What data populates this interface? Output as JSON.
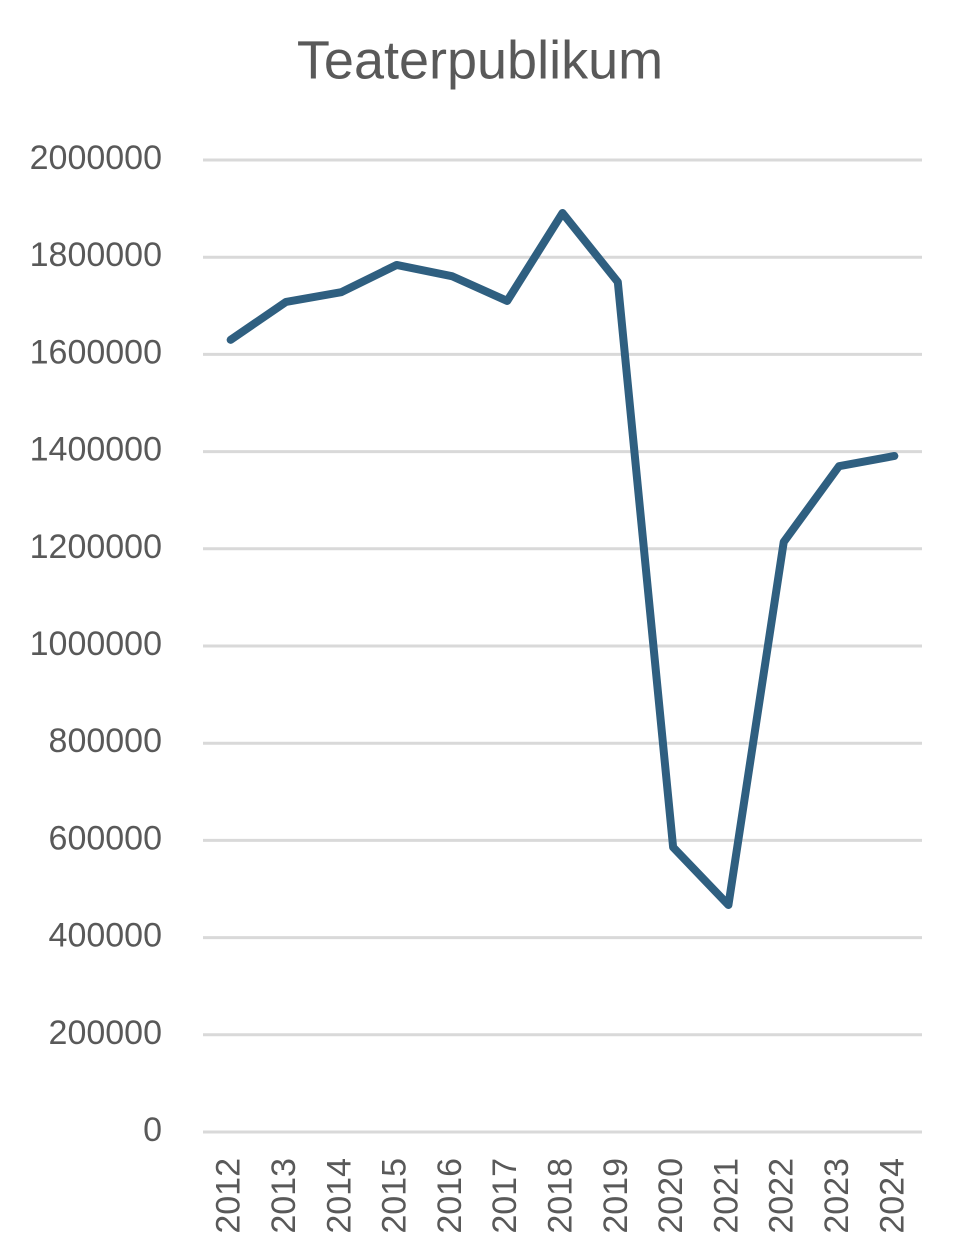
{
  "chart_data": {
    "type": "line",
    "title": "Teaterpublikum",
    "categories": [
      "2012",
      "2013",
      "2014",
      "2015",
      "2016",
      "2017",
      "2018",
      "2019",
      "2020",
      "2021",
      "2022",
      "2023",
      "2024"
    ],
    "series": [
      {
        "name": "Teaterpublikum",
        "color": "#2f5f80",
        "values": [
          1630000,
          1708000,
          1728000,
          1784000,
          1761000,
          1710000,
          1891000,
          1749000,
          586000,
          467000,
          1214000,
          1370000,
          1391000
        ]
      }
    ],
    "ylim": [
      0,
      2000000
    ],
    "yticks": [
      0,
      200000,
      400000,
      600000,
      800000,
      1000000,
      1200000,
      1400000,
      1600000,
      1800000,
      2000000
    ],
    "grid": true
  }
}
